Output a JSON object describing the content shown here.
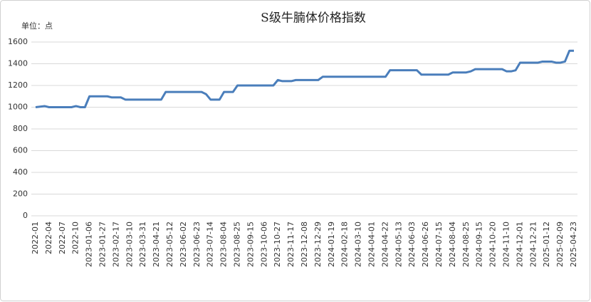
{
  "chart_data": {
    "type": "line",
    "title": "S级牛腩体价格指数",
    "unit_label": "单位：点",
    "categories": [
      "2022-01",
      null,
      null,
      "2022-04",
      null,
      null,
      "2022-07",
      null,
      null,
      "2022-10",
      null,
      null,
      "2023-01-06",
      null,
      null,
      "2023-01-27",
      null,
      null,
      "2023-02-17",
      null,
      null,
      "2023-03-10",
      null,
      null,
      "2023-03-31",
      null,
      null,
      "2023-04-21",
      null,
      null,
      "2023-05-12",
      null,
      null,
      "2023-06-02",
      null,
      null,
      "2023-06-23",
      null,
      null,
      "2023-07-14",
      null,
      null,
      "2023-08-04",
      null,
      null,
      "2023-08-25",
      null,
      null,
      "2023-09-15",
      null,
      null,
      "2023-10-06",
      null,
      null,
      "2023-10-27",
      null,
      null,
      "2023-11-17",
      null,
      null,
      "2023-12-08",
      null,
      null,
      "2023-12-29",
      null,
      null,
      "2024-01-19",
      null,
      null,
      "2024-02-18",
      null,
      null,
      "2024-03-10",
      null,
      null,
      "2024-04-01",
      null,
      null,
      "2024-04-22",
      null,
      null,
      "2024-05-13",
      null,
      null,
      "2024-06-03",
      null,
      null,
      "2024-06-26",
      null,
      null,
      "2024-07-15",
      null,
      null,
      "2024-08-04",
      null,
      null,
      "2024-08-25",
      null,
      null,
      "2024-09-15",
      null,
      null,
      "2024-10-20",
      null,
      null,
      "2024-11-10",
      null,
      null,
      "2024-12-01",
      null,
      null,
      "2024-12-21",
      null,
      null,
      "2025-01-12",
      null,
      null,
      "2025-02-09",
      null,
      null,
      "2025-04-23"
    ],
    "values": [
      1000,
      1005,
      1010,
      1000,
      1000,
      1000,
      1000,
      1000,
      1000,
      1010,
      1000,
      1000,
      1100,
      1100,
      1100,
      1100,
      1100,
      1090,
      1090,
      1090,
      1070,
      1070,
      1070,
      1070,
      1070,
      1070,
      1070,
      1070,
      1070,
      1140,
      1140,
      1140,
      1140,
      1140,
      1140,
      1140,
      1140,
      1140,
      1120,
      1070,
      1070,
      1070,
      1140,
      1140,
      1140,
      1200,
      1200,
      1200,
      1200,
      1200,
      1200,
      1200,
      1200,
      1200,
      1250,
      1240,
      1240,
      1240,
      1250,
      1250,
      1250,
      1250,
      1250,
      1250,
      1280,
      1280,
      1280,
      1280,
      1280,
      1280,
      1280,
      1280,
      1280,
      1280,
      1280,
      1280,
      1280,
      1280,
      1280,
      1340,
      1340,
      1340,
      1340,
      1340,
      1340,
      1340,
      1300,
      1300,
      1300,
      1300,
      1300,
      1300,
      1300,
      1320,
      1320,
      1320,
      1320,
      1330,
      1350,
      1350,
      1350,
      1350,
      1350,
      1350,
      1350,
      1330,
      1330,
      1340,
      1410,
      1410,
      1410,
      1410,
      1410,
      1420,
      1420,
      1420,
      1410,
      1410,
      1420,
      1520,
      1520
    ],
    "color": "#4a7ebb",
    "ylim": [
      0,
      1600
    ],
    "yticks": [
      0,
      200,
      400,
      600,
      800,
      1000,
      1200,
      1400,
      1600
    ],
    "grid": true
  }
}
